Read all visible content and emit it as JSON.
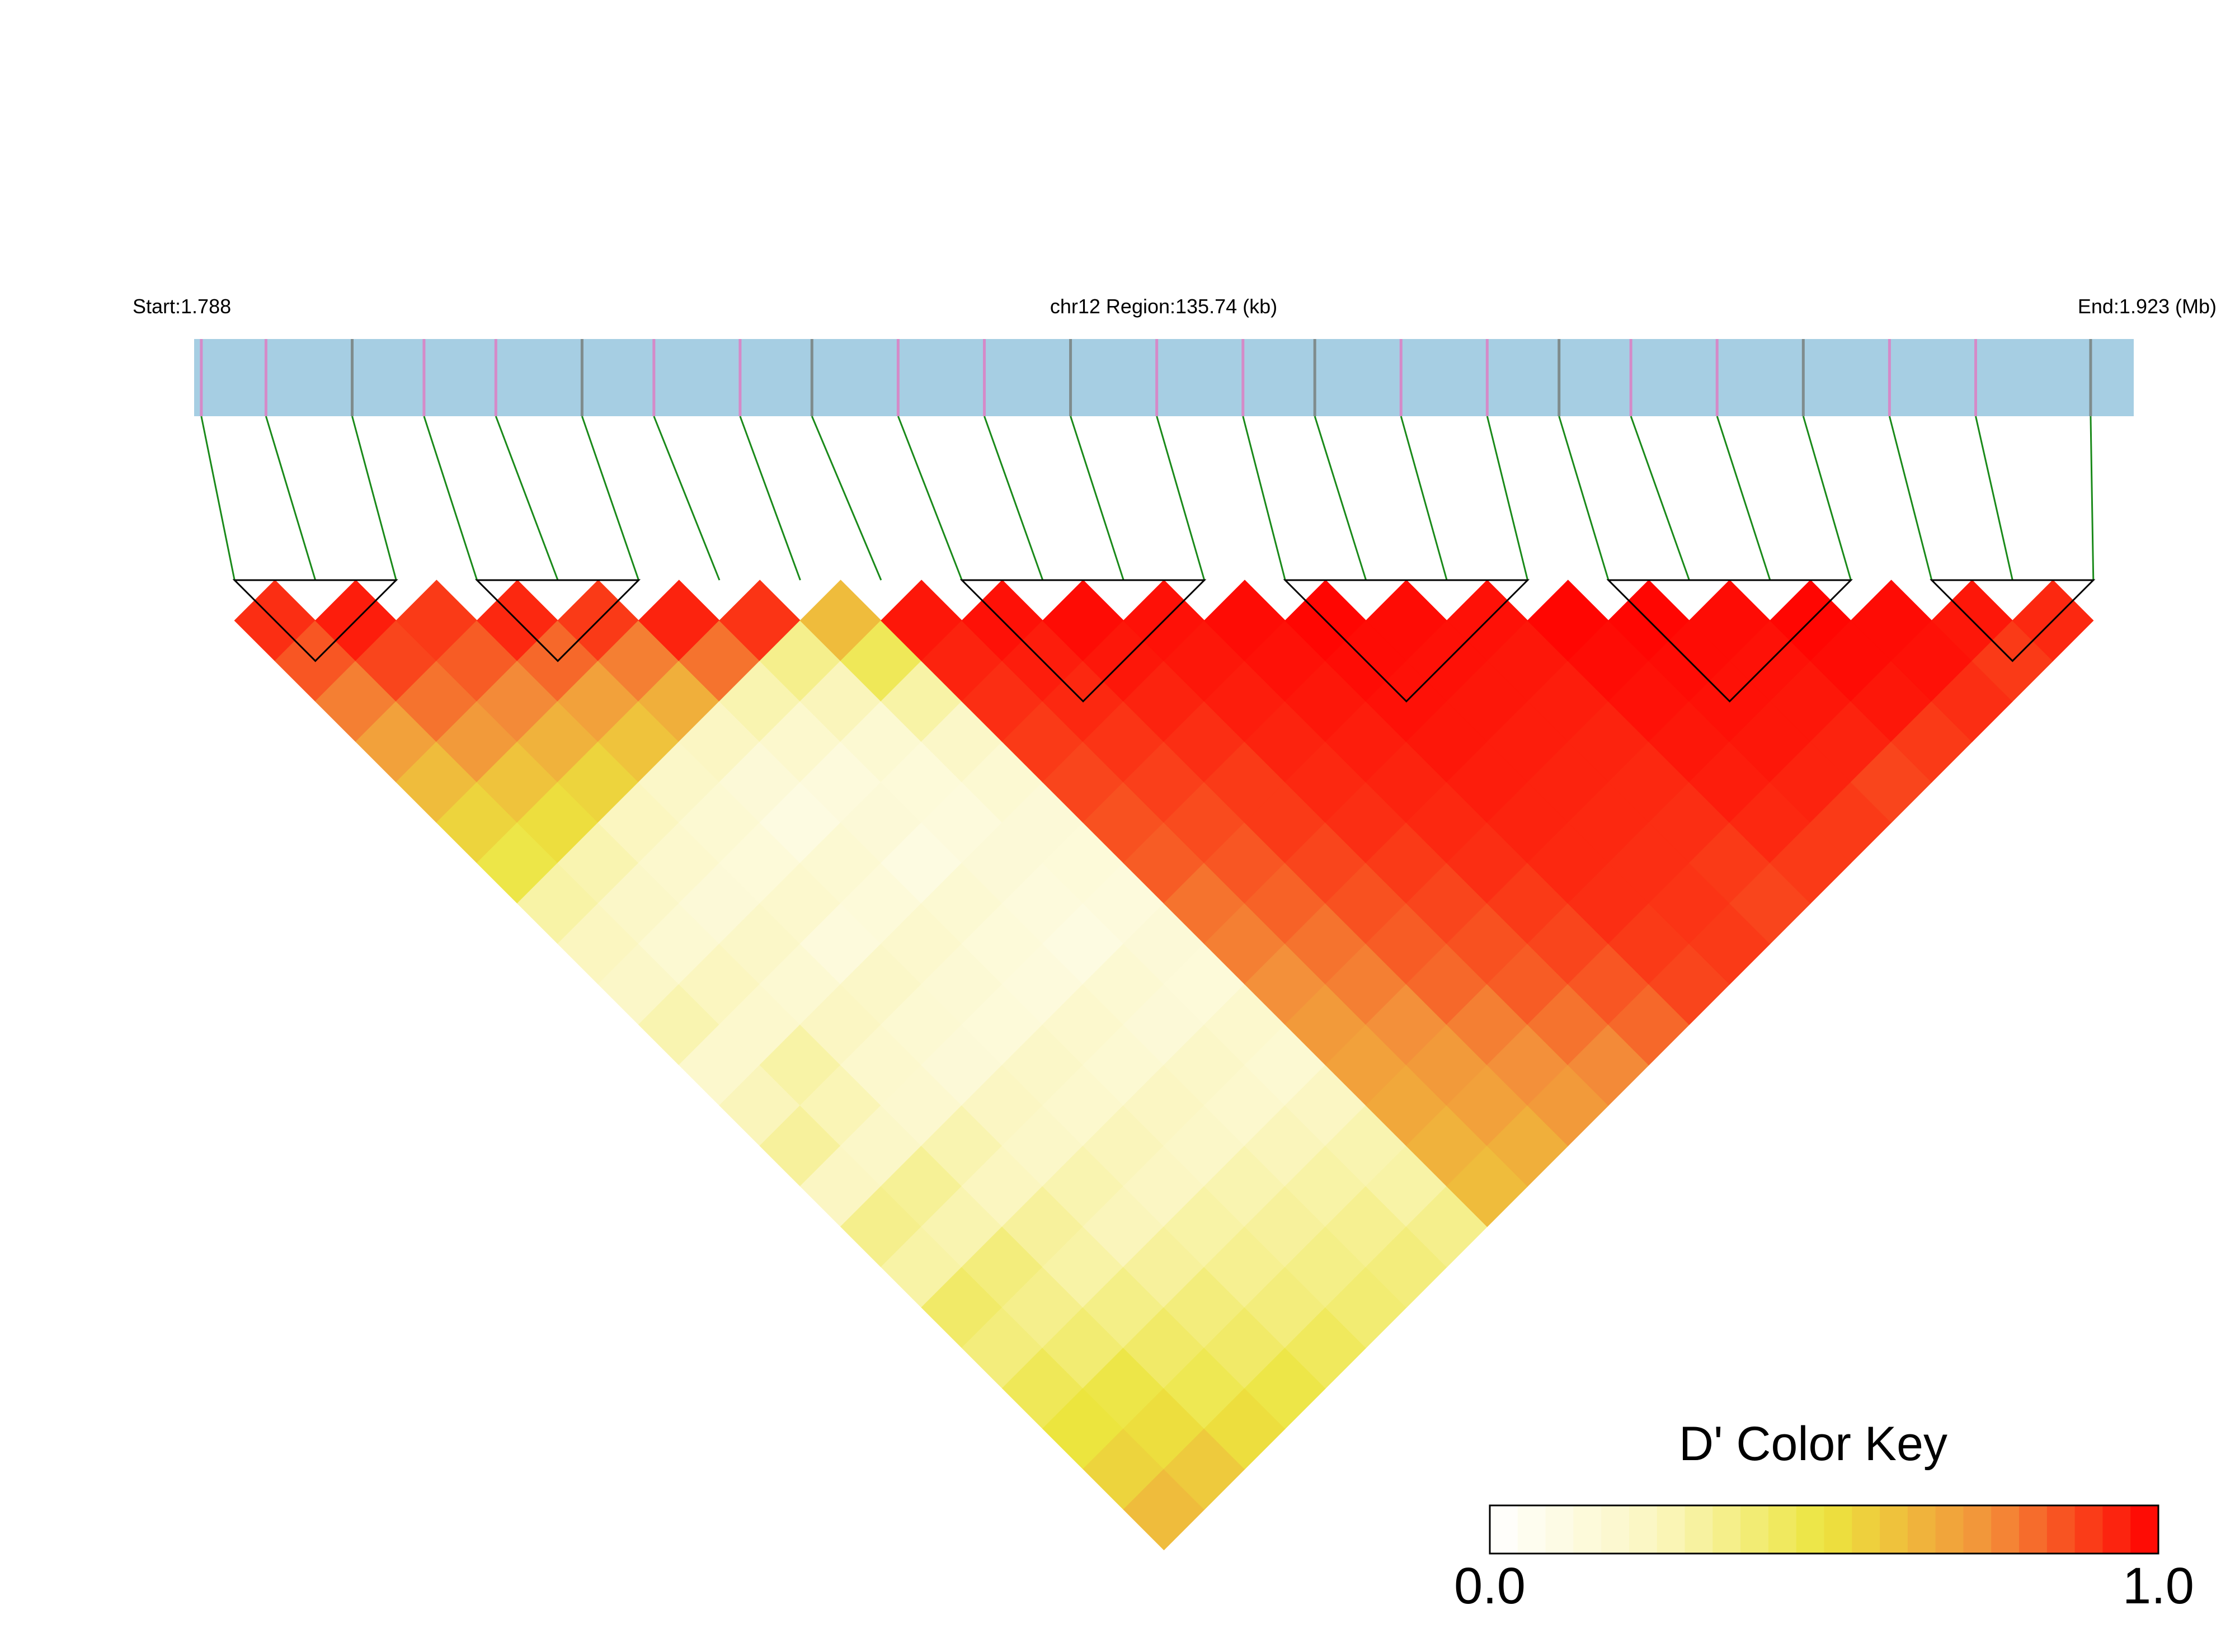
{
  "chart_data": {
    "type": "ld_heatmap",
    "title": "chr12 Region:135.74 (kb)",
    "start_label": "Start:1.788",
    "end_label": "End:1.923 (Mb)",
    "xlim": [
      1.788,
      1.923
    ],
    "x": [
      1.7885,
      1.793,
      1.799,
      1.804,
      1.809,
      1.815,
      1.82,
      1.826,
      1.831,
      1.837,
      1.843,
      1.849,
      1.855,
      1.861,
      1.866,
      1.872,
      1.878,
      1.883,
      1.888,
      1.894,
      1.9,
      1.906,
      1.912,
      1.92
    ],
    "dprime": [
      [
        0.92,
        0.85,
        0.78,
        0.7,
        0.62,
        0.55,
        0.48,
        0.3,
        0.25,
        0.22,
        0.28,
        0.2,
        0.26,
        0.32,
        0.24,
        0.35,
        0.3,
        0.42,
        0.38,
        0.45,
        0.5,
        0.55,
        0.62
      ],
      [
        0.95,
        0.88,
        0.8,
        0.72,
        0.6,
        0.52,
        0.28,
        0.22,
        0.18,
        0.25,
        0.2,
        0.3,
        0.27,
        0.22,
        0.33,
        0.28,
        0.38,
        0.35,
        0.4,
        0.48,
        0.52,
        0.58
      ],
      [
        0.9,
        0.84,
        0.76,
        0.65,
        0.55,
        0.25,
        0.2,
        0.16,
        0.22,
        0.18,
        0.24,
        0.2,
        0.19,
        0.28,
        0.25,
        0.32,
        0.3,
        0.36,
        0.42,
        0.46,
        0.52
      ],
      [
        0.93,
        0.82,
        0.7,
        0.6,
        0.22,
        0.18,
        0.15,
        0.2,
        0.14,
        0.22,
        0.18,
        0.16,
        0.24,
        0.22,
        0.28,
        0.26,
        0.32,
        0.38,
        0.42,
        0.48
      ],
      [
        0.9,
        0.78,
        0.66,
        0.24,
        0.16,
        0.12,
        0.18,
        0.15,
        0.2,
        0.17,
        0.15,
        0.22,
        0.2,
        0.26,
        0.24,
        0.3,
        0.34,
        0.38,
        0.44
      ],
      [
        0.94,
        0.8,
        0.28,
        0.2,
        0.14,
        0.16,
        0.12,
        0.18,
        0.15,
        0.14,
        0.2,
        0.18,
        0.24,
        0.22,
        0.28,
        0.32,
        0.36,
        0.4
      ],
      [
        0.91,
        0.35,
        0.26,
        0.18,
        0.15,
        0.14,
        0.16,
        0.14,
        0.12,
        0.18,
        0.16,
        0.22,
        0.2,
        0.26,
        0.3,
        0.34,
        0.38
      ],
      [
        0.62,
        0.45,
        0.3,
        0.22,
        0.18,
        0.16,
        0.15,
        0.14,
        0.16,
        0.15,
        0.2,
        0.18,
        0.24,
        0.28,
        0.3,
        0.35
      ],
      [
        0.96,
        0.94,
        0.92,
        0.9,
        0.88,
        0.86,
        0.84,
        0.8,
        0.78,
        0.75,
        0.72,
        0.7,
        0.68,
        0.65,
        0.62
      ],
      [
        0.97,
        0.95,
        0.93,
        0.91,
        0.89,
        0.87,
        0.85,
        0.83,
        0.8,
        0.78,
        0.75,
        0.72,
        0.7,
        0.66
      ],
      [
        0.98,
        0.96,
        0.94,
        0.92,
        0.9,
        0.9,
        0.88,
        0.86,
        0.84,
        0.82,
        0.78,
        0.75,
        0.72
      ],
      [
        0.97,
        0.96,
        0.95,
        0.94,
        0.93,
        0.92,
        0.9,
        0.88,
        0.86,
        0.84,
        0.8,
        0.76
      ],
      [
        0.98,
        0.97,
        0.96,
        0.95,
        0.94,
        0.93,
        0.92,
        0.9,
        0.88,
        0.85,
        0.82
      ],
      [
        0.99,
        0.98,
        0.97,
        0.96,
        0.95,
        0.94,
        0.93,
        0.92,
        0.9,
        0.88
      ],
      [
        0.98,
        0.97,
        0.96,
        0.95,
        0.94,
        0.93,
        0.92,
        0.91,
        0.9
      ],
      [
        0.97,
        0.96,
        0.95,
        0.94,
        0.93,
        0.92,
        0.9,
        0.88
      ],
      [
        0.99,
        0.98,
        0.97,
        0.96,
        0.95,
        0.93,
        0.9
      ],
      [
        0.99,
        0.98,
        0.97,
        0.96,
        0.94,
        0.9
      ],
      [
        0.98,
        0.97,
        0.96,
        0.94,
        0.88
      ],
      [
        0.99,
        0.98,
        0.96,
        0.9
      ],
      [
        0.98,
        0.97,
        0.92
      ],
      [
        0.96,
        0.9
      ],
      [
        0.93
      ]
    ],
    "blocks": [
      [
        0,
        2
      ],
      [
        3,
        5
      ],
      [
        9,
        12
      ],
      [
        13,
        16
      ],
      [
        17,
        20
      ],
      [
        21,
        23
      ]
    ],
    "colorscale": [
      "#ffffff",
      "#fbf6c0",
      "#ece53e",
      "#f3903a",
      "#ff0000"
    ],
    "colorbar_title": "D' Color Key",
    "clim": [
      0,
      1
    ],
    "colorbar_ticks": [
      {
        "value": 0,
        "label": "0.0"
      },
      {
        "value": 1,
        "label": "1.0"
      }
    ]
  }
}
